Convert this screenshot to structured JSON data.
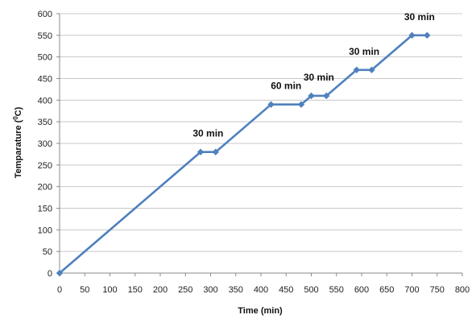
{
  "chart_data": {
    "type": "line",
    "xlabel": "Time (min)",
    "ylabel_parts": [
      "Temparature (",
      "0",
      "C)"
    ],
    "xlim": [
      0,
      800
    ],
    "ylim": [
      0,
      600
    ],
    "xticks": [
      0,
      50,
      100,
      150,
      200,
      250,
      300,
      350,
      400,
      450,
      500,
      550,
      600,
      650,
      700,
      750,
      800
    ],
    "yticks": [
      0,
      50,
      100,
      150,
      200,
      250,
      300,
      350,
      400,
      450,
      500,
      550,
      600
    ],
    "grid": "horizontal",
    "color": "#4F81BD",
    "series": [
      {
        "x": [
          0,
          280,
          310,
          420,
          480,
          500,
          530,
          590,
          620,
          700,
          730
        ],
        "y": [
          0,
          280,
          280,
          390,
          390,
          410,
          410,
          470,
          470,
          550,
          550
        ]
      }
    ],
    "annotations": [
      {
        "text": "30 min",
        "x": 295,
        "y": 280
      },
      {
        "text": "60 min",
        "x": 450,
        "y": 390
      },
      {
        "text": "30 min",
        "x": 515,
        "y": 410
      },
      {
        "text": "30 min",
        "x": 605,
        "y": 470
      },
      {
        "text": "30 min",
        "x": 715,
        "y": 550
      }
    ]
  }
}
